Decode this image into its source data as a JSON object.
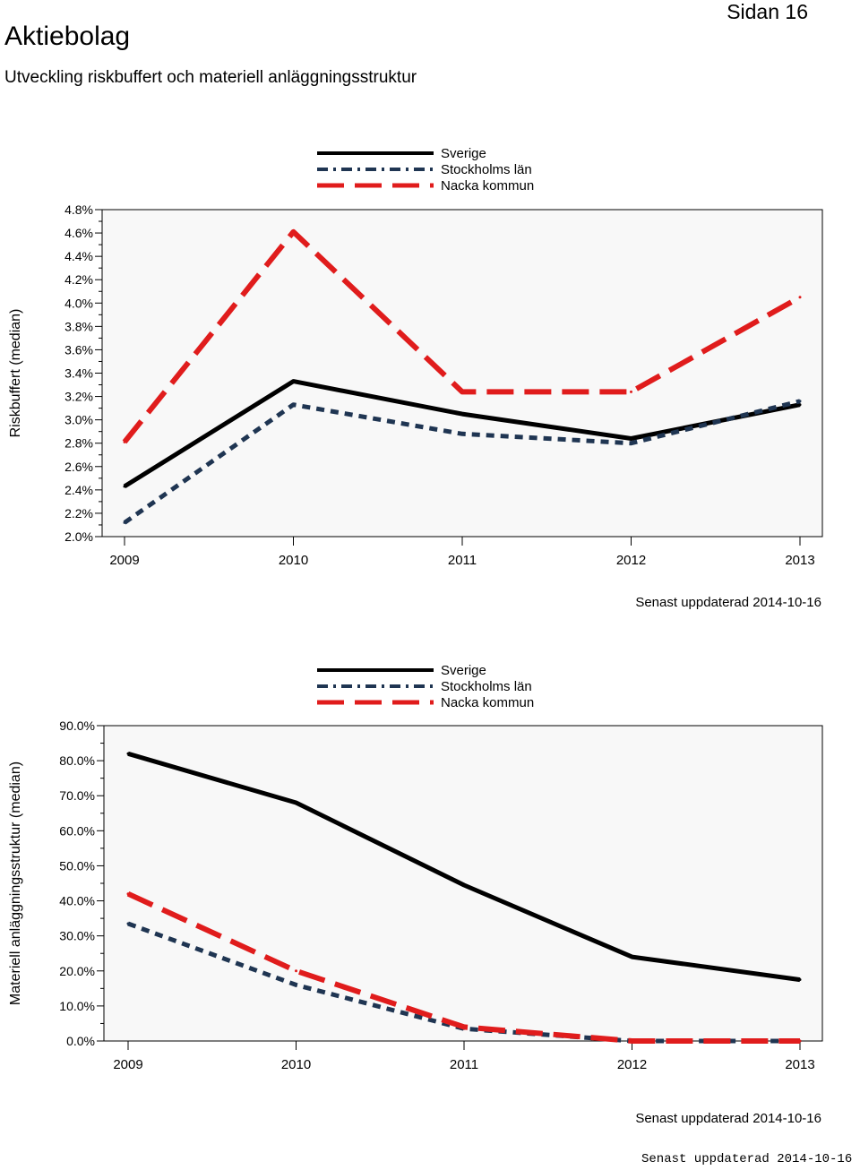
{
  "header": {
    "title": "Aktiebolag",
    "page_label": "Sidan 16",
    "subtitle": "Utveckling riskbuffert och materiell anläggningsstruktur"
  },
  "colors": {
    "sverige": "#000000",
    "stockholm": "#1f3552",
    "nacka": "#e01c1c",
    "plot_bg": "#f8f8f8"
  },
  "chart_data": [
    {
      "type": "line",
      "title": "",
      "xlabel": "",
      "ylabel": "Riskbuffert (median)",
      "categories": [
        "2009",
        "2010",
        "2011",
        "2012",
        "2013"
      ],
      "ylim": [
        2.0,
        4.8
      ],
      "yticks": [
        "2.0%",
        "2.2%",
        "2.4%",
        "2.6%",
        "2.8%",
        "3.0%",
        "3.2%",
        "3.4%",
        "3.6%",
        "3.8%",
        "4.0%",
        "4.2%",
        "4.4%",
        "4.6%",
        "4.8%"
      ],
      "series": [
        {
          "name": "Sverige",
          "values": [
            2.43,
            3.33,
            3.05,
            2.84,
            3.13
          ]
        },
        {
          "name": "Stockholms län",
          "values": [
            2.12,
            3.13,
            2.88,
            2.8,
            3.16
          ]
        },
        {
          "name": "Nacka kommun",
          "values": [
            2.81,
            4.61,
            3.24,
            3.24,
            4.05
          ]
        }
      ],
      "legend": {
        "position": "top-center",
        "entries": [
          "Sverige",
          "Stockholms län",
          "Nacka kommun"
        ]
      },
      "updated": "Senast uppdaterad 2014-10-16"
    },
    {
      "type": "line",
      "title": "",
      "xlabel": "",
      "ylabel": "Materiell anläggningsstruktur (median)",
      "categories": [
        "2009",
        "2010",
        "2011",
        "2012",
        "2013"
      ],
      "ylim": [
        0,
        90
      ],
      "yticks": [
        "0.0%",
        "10.0%",
        "20.0%",
        "30.0%",
        "40.0%",
        "50.0%",
        "60.0%",
        "70.0%",
        "80.0%",
        "90.0%"
      ],
      "series": [
        {
          "name": "Sverige",
          "values": [
            82.0,
            68.0,
            44.5,
            24.0,
            17.5
          ]
        },
        {
          "name": "Stockholms län",
          "values": [
            33.5,
            16.0,
            3.5,
            0.0,
            0.0
          ]
        },
        {
          "name": "Nacka kommun",
          "values": [
            42.0,
            20.0,
            4.0,
            0.0,
            0.0
          ]
        }
      ],
      "legend": {
        "position": "top-center",
        "entries": [
          "Sverige",
          "Stockholms län",
          "Nacka kommun"
        ]
      },
      "updated": "Senast uppdaterad 2014-10-16"
    }
  ],
  "footer": {
    "updated_mono": "Senast uppdaterad 2014-10-16"
  }
}
